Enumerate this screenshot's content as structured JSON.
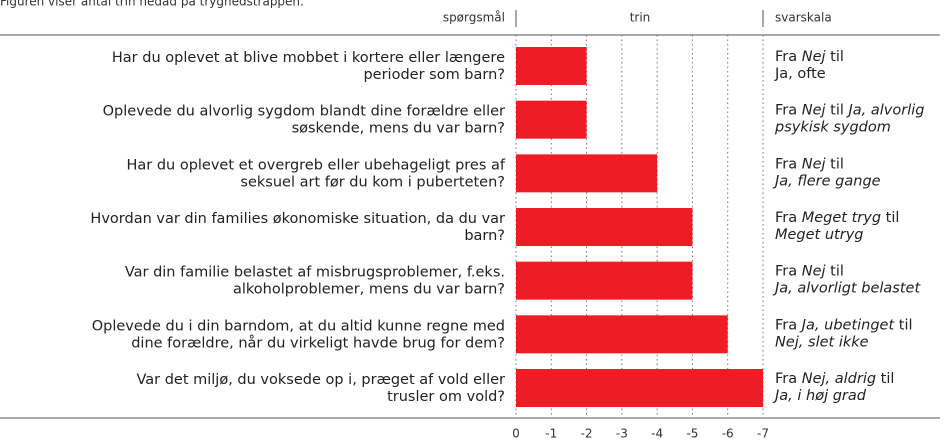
{
  "chart_data": {
    "type": "bar",
    "caption": "Figuren viser antal trin nedad på tryghedstrappen.",
    "headers": {
      "questions": "spørgsmål",
      "axis": "trin",
      "scale": "svarskala"
    },
    "categories": [
      [
        "Har du oplevet at blive mobbet i kortere eller længere",
        "perioder som barn?"
      ],
      [
        "Oplevede du alvorlig sygdom blandt dine forældre eller",
        "søskende, mens du var barn?"
      ],
      [
        "Har du oplevet et overgreb eller ubehageligt pres af",
        "seksuel art før du kom i puberteten?"
      ],
      [
        "Hvordan var din families økonomiske situation, da du var",
        "barn?"
      ],
      [
        "Var din familie belastet af misbrugsproblemer, f.eks.",
        "alkoholproblemer, mens du var barn?"
      ],
      [
        "Oplevede du i din barndom, at du altid kunne regne med",
        "dine forældre, når du virkeligt havde brug for dem?"
      ],
      [
        "Var det miljø, du voksede op i, præget af vold eller",
        "trusler om vold?"
      ]
    ],
    "values": [
      -2,
      -2,
      -4,
      -5,
      -5,
      -6,
      -7
    ],
    "color": "#ee1c25",
    "scales": [
      [
        [
          {
            "text": "Fra ",
            "italic": false
          },
          {
            "text": "Nej",
            "italic": true
          },
          {
            "text": " til",
            "italic": false
          }
        ],
        [
          {
            "text": "Ja, ofte",
            "italic": false
          }
        ]
      ],
      [
        [
          {
            "text": "Fra ",
            "italic": false
          },
          {
            "text": "Nej",
            "italic": true
          },
          {
            "text": " til ",
            "italic": false
          },
          {
            "text": "Ja, alvorlig",
            "italic": true
          }
        ],
        [
          {
            "text": "psykisk sygdom",
            "italic": true
          }
        ]
      ],
      [
        [
          {
            "text": "Fra ",
            "italic": false
          },
          {
            "text": "Nej",
            "italic": true
          },
          {
            "text": " til",
            "italic": false
          }
        ],
        [
          {
            "text": "Ja, flere gange",
            "italic": true
          }
        ]
      ],
      [
        [
          {
            "text": "Fra ",
            "italic": false
          },
          {
            "text": "Meget tryg",
            "italic": true
          },
          {
            "text": " til",
            "italic": false
          }
        ],
        [
          {
            "text": "Meget utryg",
            "italic": true
          }
        ]
      ],
      [
        [
          {
            "text": "Fra ",
            "italic": false
          },
          {
            "text": "Nej",
            "italic": true
          },
          {
            "text": " til",
            "italic": false
          }
        ],
        [
          {
            "text": "Ja, alvorligt belastet",
            "italic": true
          }
        ]
      ],
      [
        [
          {
            "text": "Fra ",
            "italic": false
          },
          {
            "text": "Ja, ubetinget",
            "italic": true
          },
          {
            "text": " til",
            "italic": false
          }
        ],
        [
          {
            "text": "Nej, slet ikke",
            "italic": true
          }
        ]
      ],
      [
        [
          {
            "text": "Fra ",
            "italic": false
          },
          {
            "text": "Nej, aldrig",
            "italic": true
          },
          {
            "text": " til",
            "italic": false
          }
        ],
        [
          {
            "text": "Ja, i høj grad",
            "italic": true
          }
        ]
      ]
    ],
    "xlim": [
      0,
      -7
    ],
    "xticks": [
      0,
      -1,
      -2,
      -3,
      -4,
      -5,
      -6,
      -7
    ],
    "grid": true
  }
}
